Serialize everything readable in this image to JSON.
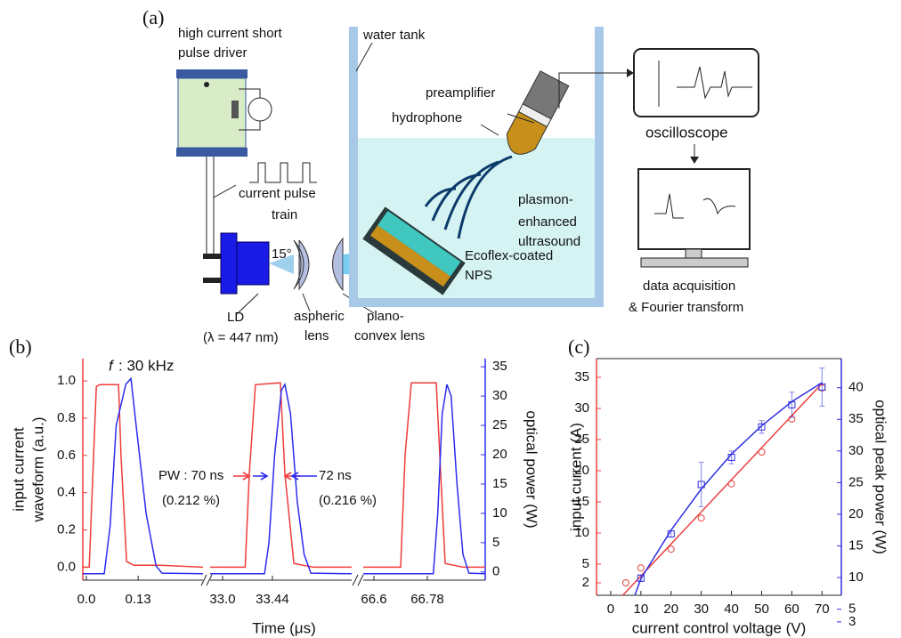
{
  "diagram": {
    "panel_label": "(a)",
    "driver": [
      "high current short",
      "pulse driver"
    ],
    "pulse_train": [
      "current pulse",
      "train"
    ],
    "ld": [
      "LD",
      "(λ = 447 nm)"
    ],
    "angle": "15°",
    "aspheric": [
      "aspheric",
      "lens"
    ],
    "plano": [
      "plano-",
      "convex lens"
    ],
    "tank": "water tank",
    "preamplifier": "preamplifier",
    "hydrophone": "hydrophone",
    "ultrasound": [
      "plasmon-",
      "enhanced",
      "ultrasound"
    ],
    "nps": [
      "Ecoflex-coated",
      "NPS"
    ],
    "oscilloscope": "oscilloscope",
    "daq": [
      "data acquisition",
      "& Fourier transform"
    ]
  },
  "chart_data": [
    {
      "type": "line",
      "panel_label": "(b)",
      "freq_note": {
        "symbol": "f",
        "text": ": 30 kHz"
      },
      "xlabel": "Time (μs)",
      "ylabel": [
        "input current",
        "waveform (a.u.)"
      ],
      "y2label": "optical power (W)",
      "segments": [
        {
          "xlim": [
            -0.009,
            0.293
          ],
          "xticks": [
            {
              "value": 0,
              "label": "0.0"
            },
            0.13
          ]
        },
        {
          "xlim": [
            32.89,
            34.14
          ],
          "xticks": [
            {
              "value": 33,
              "label": "33.0"
            },
            33.44
          ]
        },
        {
          "xlim": [
            66.564,
            66.975
          ],
          "xticks": [
            66.6,
            66.78
          ]
        }
      ],
      "ylim": [
        -0.07,
        1.12
      ],
      "yticks": [
        {
          "value": 0,
          "label": "0.0"
        },
        0.2,
        0.4,
        0.6,
        0.8,
        {
          "value": 1,
          "label": "1.0"
        }
      ],
      "y2lim": [
        -1.4,
        36.4
      ],
      "y2ticks": [
        0,
        5,
        10,
        15,
        20,
        25,
        30,
        35
      ],
      "ycolor": "#f03c3c",
      "y2color": "#2b2bef",
      "annotations": [
        "PW : 70 ns",
        "(0.212 %)",
        "72 ns",
        "(0.216 %)"
      ],
      "series": [
        {
          "color": "#f03c3c",
          "x": [
            -0.009,
            0.007,
            0.025,
            0.034,
            0.081,
            0.087,
            0.101,
            0.119,
            0.186,
            0.293,
            null,
            32.89,
            33.2,
            33.236,
            33.29,
            33.51,
            33.55,
            33.63,
            33.8,
            34.14,
            null,
            66.564,
            66.69,
            66.705,
            66.726,
            66.81,
            66.825,
            66.84,
            66.9,
            66.975
          ],
          "values": [
            0,
            0,
            0.97,
            0.98,
            0.98,
            0.6,
            0.03,
            0.01,
            0.01,
            0,
            null,
            0,
            0,
            0.5,
            0.98,
            0.99,
            0.5,
            0.02,
            0,
            0,
            null,
            0,
            0,
            0.6,
            0.99,
            0.99,
            0.5,
            0.02,
            0,
            0
          ]
        },
        {
          "color": "#2b2bef",
          "axis": "y2",
          "x": [
            -0.009,
            0.045,
            0.06,
            0.075,
            0.099,
            0.112,
            0.125,
            0.15,
            0.175,
            0.19,
            0.293,
            null,
            32.89,
            33.37,
            33.41,
            33.46,
            33.52,
            33.55,
            33.6,
            33.66,
            33.72,
            33.78,
            34.14,
            null,
            66.564,
            66.8,
            66.815,
            66.83,
            66.846,
            66.86,
            66.88,
            66.9,
            66.92,
            66.975
          ],
          "values": [
            -0.3,
            -0.3,
            8,
            25,
            32,
            33,
            25,
            10,
            1,
            -0.2,
            -0.3,
            null,
            -0.3,
            -0.3,
            5,
            20,
            31,
            32,
            27,
            12,
            3,
            -0.2,
            -0.3,
            null,
            -0.3,
            -0.3,
            10,
            27,
            32,
            30,
            15,
            3,
            -0.2,
            -0.3
          ]
        }
      ]
    },
    {
      "type": "scatter",
      "panel_label": "(c)",
      "xlabel": "current control voltage (V)",
      "ylabel": "input current (A)",
      "y2label": "optical peak power (W)",
      "xlim": [
        -4.7,
        76.4
      ],
      "xticks": [
        0,
        10,
        20,
        30,
        40,
        50,
        60,
        70
      ],
      "ylim": [
        0,
        38
      ],
      "yticks": [
        2,
        5,
        10,
        15,
        20,
        25,
        30,
        35
      ],
      "y2lim": [
        7.2,
        44.6
      ],
      "y2ticks": [
        3,
        5,
        10,
        15,
        20,
        25,
        30,
        35,
        40
      ],
      "ycolor": "#e8403f",
      "y2color": "#3030e0",
      "series": [
        {
          "color": "#e8403f",
          "marker": "circle",
          "x": [
            5,
            10,
            20,
            30,
            40,
            50,
            60,
            70
          ],
          "values": [
            2.0,
            4.4,
            7.4,
            12.4,
            17.9,
            23,
            28.3,
            33.3
          ]
        },
        {
          "color": "#e8403f",
          "x": [
            4,
            70
          ],
          "values": [
            0,
            34
          ]
        },
        {
          "color": "#3030e0",
          "marker": "square",
          "axis": "y2",
          "x": [
            10,
            20,
            30,
            40,
            50,
            60,
            70
          ],
          "values": [
            9.9,
            16.9,
            24.7,
            29.0,
            33.8,
            37.3,
            40.1
          ],
          "errors": [
            0.5,
            0.5,
            3.5,
            1,
            1,
            2,
            3
          ]
        },
        {
          "color": "#3030e0",
          "axis": "y2",
          "x": [
            8,
            10,
            20,
            30,
            40,
            50,
            60,
            70
          ],
          "values": [
            7.2,
            9.8,
            17.5,
            24,
            29.5,
            34,
            37.8,
            40.8
          ]
        }
      ]
    }
  ]
}
